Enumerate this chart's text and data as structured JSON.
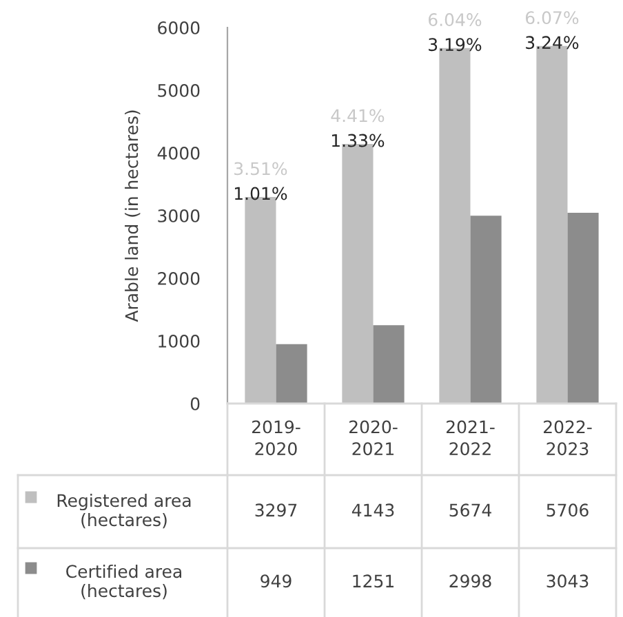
{
  "chart_data": {
    "type": "bar",
    "ylabel": "Arable land (in hectares)",
    "categories": [
      "2019-2020",
      "2020-2021",
      "2021-2022",
      "2022-2023"
    ],
    "series": [
      {
        "name": "Registered area (hectares)",
        "color": "#bfbfbf",
        "values": [
          3297,
          4143,
          5674,
          5706
        ]
      },
      {
        "name": "Certified area (hectares)",
        "color": "#8c8c8c",
        "values": [
          949,
          1251,
          2998,
          3043
        ]
      }
    ],
    "annotations": [
      {
        "text": "3.51%",
        "x": "2019-2020",
        "y": 3297
      },
      {
        "text": "1.01%",
        "x": "2019-2020",
        "y": 3297
      },
      {
        "text": "4.41%",
        "x": "2020-2021",
        "y": 4143
      },
      {
        "text": "1.33%",
        "x": "2020-2021",
        "y": 4143
      },
      {
        "text": "6.04%",
        "x": "2021-2022",
        "y": 5674
      },
      {
        "text": "3.19%",
        "x": "2021-2022",
        "y": 5674
      },
      {
        "text": "6.07%",
        "x": "2022-2023",
        "y": 5706
      },
      {
        "text": "3.24%",
        "x": "2022-2023",
        "y": 5706
      }
    ],
    "ylim": [
      0,
      6000
    ],
    "yticks": [
      0,
      1000,
      2000,
      3000,
      4000,
      5000,
      6000
    ],
    "grid": false,
    "legend": "bottom",
    "data_labels": true
  }
}
